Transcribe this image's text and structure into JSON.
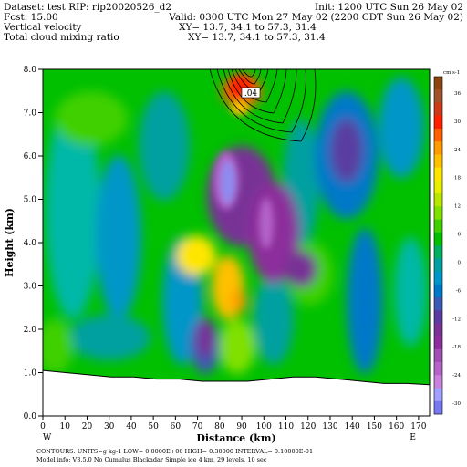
{
  "header": {
    "dataset": "Dataset: test   RIP: rip20020526_d2",
    "init": "Init: 1200 UTC Sun 26 May 02",
    "fcst": "Fcst:     15.00",
    "valid": "Valid: 0300 UTC Mon 27 May 02 (2200 CDT Sun 26 May 02)",
    "field1": "Vertical velocity",
    "field1_xy": "XY=  13.7, 34.1 to  57.3, 31.4",
    "field2": "Total cloud mixing ratio",
    "field2_xy": "XY=  13.7, 34.1 to  57.3, 31.4"
  },
  "footer": {
    "line1": "CONTOURS:  UNITS=g kg-1   LOW= 0.0000E+00  HIGH= 0.30000          INTERVAL=  0.10000E-01",
    "line2": "Model info: V3.5.0 No Cumulus Blackadar  Simple ice      4 km,   29 levels,   10 sec"
  },
  "chart_data": {
    "type": "heatmap",
    "xlabel": "Distance (km)",
    "ylabel": "Height (km)",
    "xlim": [
      0,
      175
    ],
    "ylim": [
      0,
      8
    ],
    "x_ticks": [
      "0",
      "10",
      "20",
      "30",
      "40",
      "50",
      "60",
      "70",
      "80",
      "90",
      "100",
      "110",
      "120",
      "130",
      "140",
      "150",
      "160",
      "170"
    ],
    "y_ticks": [
      "0.0",
      "1.0",
      "2.0",
      "3.0",
      "4.0",
      "5.0",
      "6.0",
      "7.0",
      "8.0"
    ],
    "x_endpoints": [
      "W",
      "E"
    ],
    "contour_label": ".04",
    "colorbar": {
      "units": "cm s-1",
      "labels": [
        "36",
        "30",
        "24",
        "18",
        "12",
        "6",
        "0",
        "-6",
        "-12",
        "-18",
        "-24",
        "-30"
      ],
      "colors": [
        "#8b4513",
        "#a0522d",
        "#cd3a1a",
        "#ff2000",
        "#ff6000",
        "#ff9a00",
        "#ffc000",
        "#ffe600",
        "#e6f000",
        "#b8e600",
        "#80e000",
        "#40d000",
        "#00c000",
        "#00b060",
        "#00a0a0",
        "#0096c8",
        "#0078c8",
        "#3c5ab4",
        "#5a3ca0",
        "#783296",
        "#8c2d9b",
        "#a050b4",
        "#b464c8",
        "#c882dc",
        "#a0a0ff",
        "#7878f0"
      ]
    },
    "terrain_height_km": [
      1.05,
      1.0,
      0.95,
      0.9,
      0.9,
      0.85,
      0.85,
      0.8,
      0.8,
      0.8,
      0.85,
      0.9,
      0.9,
      0.85,
      0.8,
      0.75,
      0.75,
      0.72
    ],
    "features": [
      {
        "kind": "updraft",
        "x": 85,
        "y": 7.7,
        "value": 30
      },
      {
        "kind": "downdraft",
        "x": 82,
        "y": 5.7,
        "value": -30
      },
      {
        "kind": "downdraft",
        "x": 100,
        "y": 4.5,
        "value": -15
      },
      {
        "kind": "updraft",
        "x": 72,
        "y": 3.8,
        "value": 8
      },
      {
        "kind": "updraft",
        "x": 82,
        "y": 3.0,
        "value": 10
      },
      {
        "kind": "downdraft",
        "x": 72,
        "y": 2.0,
        "value": -15
      },
      {
        "kind": "downdraft",
        "x": 155,
        "y": 6.5,
        "value": -12
      }
    ]
  }
}
